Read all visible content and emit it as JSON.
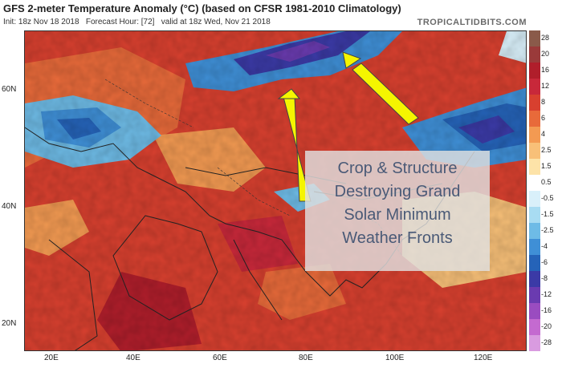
{
  "header": {
    "title": "GFS 2-meter Temperature Anomaly (°C) (based on CFSR 1981-2010 Climatology)",
    "init": "Init: 18z Nov 18 2018",
    "forecast": "Forecast Hour: [72]",
    "valid": "valid at 18z Wed, Nov 21 2018",
    "brand": "TROPICALTIDBITS.COM"
  },
  "axes": {
    "lat_labels": [
      "60N",
      "40N",
      "20N"
    ],
    "lon_labels": [
      "20E",
      "40E",
      "60E",
      "80E",
      "100E",
      "120E"
    ]
  },
  "colorbar": {
    "labels": [
      "28",
      "20",
      "16",
      "12",
      "8",
      "6",
      "4",
      "2.5",
      "1.5",
      "0.5",
      "-0.5",
      "-1.5",
      "-2.5",
      "-4",
      "-6",
      "-8",
      "-12",
      "-16",
      "-20",
      "-28"
    ],
    "colors": [
      "#8a5a4a",
      "#9a3a3a",
      "#b01e2b",
      "#c8283a",
      "#d8402f",
      "#e86a3a",
      "#f39a52",
      "#f8c078",
      "#fde3a8",
      "#ffffff",
      "#d9f0fa",
      "#a8dcf2",
      "#6ebbe6",
      "#3f8fd6",
      "#2563b8",
      "#3b3aa6",
      "#6a3bb0",
      "#9a4cc0",
      "#c46ad0",
      "#d99be0"
    ]
  },
  "annotation": {
    "lines": [
      "Crop & Structure",
      "Destroying Grand",
      "Solar Minimum",
      "Weather Fronts"
    ]
  }
}
